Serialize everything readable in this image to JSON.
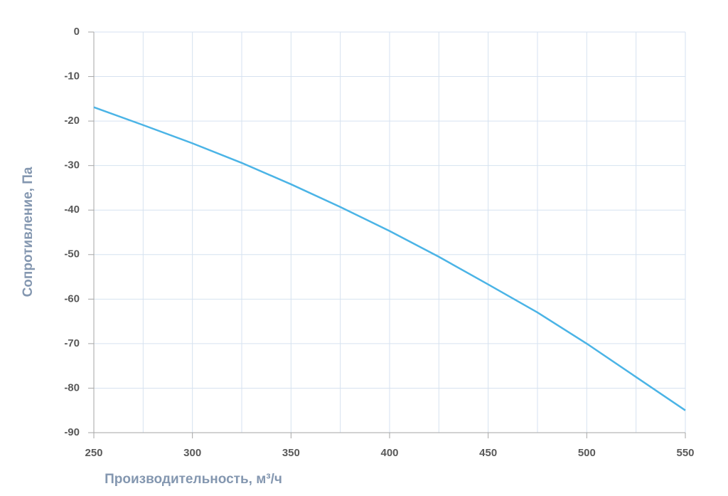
{
  "chart_data": {
    "type": "line",
    "x_label": "Производительность, м³/ч",
    "y_label": "Сопротивление, Па",
    "series": [
      {
        "color": "#4bb4e6",
        "x": [
          250,
          275,
          300,
          325,
          350,
          375,
          400,
          425,
          450,
          475,
          500,
          525,
          550
        ],
        "values": [
          -16.9,
          -20.9,
          -25,
          -29.4,
          -34.2,
          -39.3,
          -44.7,
          -50.5,
          -56.7,
          -63,
          -70,
          -77.5,
          -85
        ]
      }
    ],
    "xlim": [
      250,
      550
    ],
    "xticks": [
      250,
      300,
      350,
      400,
      450,
      500,
      550
    ],
    "xgrid": [
      250,
      275,
      300,
      325,
      350,
      375,
      400,
      425,
      450,
      475,
      500,
      525,
      550
    ],
    "ylim": [
      -90,
      0
    ],
    "yticks": [
      0,
      -10,
      -20,
      -30,
      -40,
      -50,
      -60,
      -70,
      -80,
      -90
    ],
    "grid": true,
    "grid_color": "#d6e2f0",
    "axis_color": "#a6a6a6"
  }
}
